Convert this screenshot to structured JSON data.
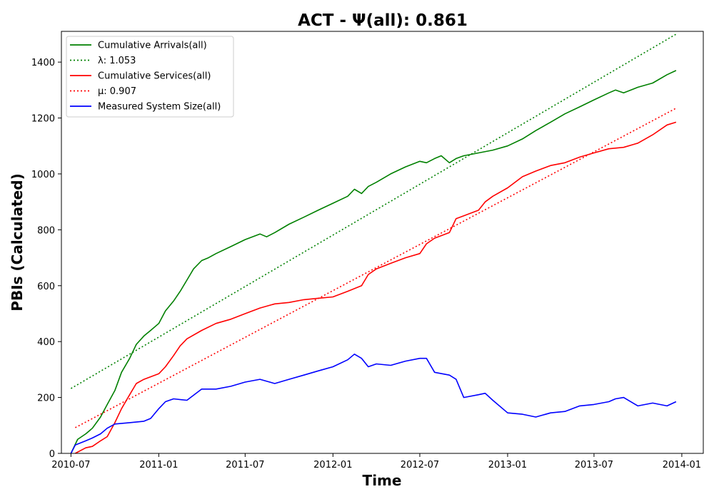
{
  "chart_data": {
    "type": "line",
    "title": "ACT -  Ψ(all): 0.861",
    "xlabel": "Time",
    "ylabel": "PBIs (Calculated)",
    "xlim": [
      "2010-06-11",
      "2014-02-15"
    ],
    "ylim": [
      0,
      1510
    ],
    "x_ticks": [
      "2010-07",
      "2011-01",
      "2011-07",
      "2012-01",
      "2012-07",
      "2013-01",
      "2013-07",
      "2014-01"
    ],
    "y_ticks": [
      0,
      200,
      400,
      600,
      800,
      1000,
      1200,
      1400
    ],
    "grid": false,
    "legend_position": "top-left",
    "series": [
      {
        "name": "Cumulative Arrivals(all)",
        "color": "#008000",
        "style": "solid",
        "x": [
          "2010-07-01",
          "2010-07-15",
          "2010-08-01",
          "2010-08-15",
          "2010-09-01",
          "2010-09-15",
          "2010-10-01",
          "2010-10-15",
          "2010-11-01",
          "2010-11-15",
          "2010-12-01",
          "2010-12-15",
          "2011-01-01",
          "2011-01-15",
          "2011-02-01",
          "2011-02-15",
          "2011-03-01",
          "2011-03-15",
          "2011-04-01",
          "2011-04-15",
          "2011-05-01",
          "2011-06-01",
          "2011-07-01",
          "2011-08-01",
          "2011-08-15",
          "2011-09-01",
          "2011-10-01",
          "2011-11-01",
          "2011-12-01",
          "2012-01-01",
          "2012-02-01",
          "2012-02-15",
          "2012-03-01",
          "2012-03-15",
          "2012-04-01",
          "2012-05-01",
          "2012-06-01",
          "2012-07-01",
          "2012-07-15",
          "2012-08-01",
          "2012-08-15",
          "2012-09-01",
          "2012-09-15",
          "2012-10-01",
          "2012-11-01",
          "2012-12-01",
          "2013-01-01",
          "2013-02-01",
          "2013-03-01",
          "2013-04-01",
          "2013-05-01",
          "2013-06-01",
          "2013-07-01",
          "2013-08-01",
          "2013-08-15",
          "2013-09-01",
          "2013-10-01",
          "2013-11-01",
          "2013-12-01",
          "2013-12-20"
        ],
        "values": [
          0,
          50,
          70,
          90,
          130,
          175,
          225,
          290,
          340,
          390,
          420,
          440,
          465,
          510,
          545,
          580,
          620,
          660,
          690,
          700,
          715,
          740,
          765,
          785,
          775,
          790,
          820,
          845,
          870,
          895,
          920,
          945,
          930,
          955,
          970,
          1000,
          1025,
          1045,
          1040,
          1055,
          1065,
          1040,
          1055,
          1065,
          1075,
          1085,
          1100,
          1125,
          1155,
          1185,
          1215,
          1240,
          1265,
          1290,
          1300,
          1290,
          1310,
          1325,
          1355,
          1370
        ]
      },
      {
        "name": "λ: 1.053",
        "color": "#008000",
        "style": "dotted",
        "x": [
          "2010-07-01",
          "2013-12-20"
        ],
        "values": [
          232,
          1500
        ]
      },
      {
        "name": "Cumulative Services(all)",
        "color": "#ff0000",
        "style": "solid",
        "x": [
          "2010-07-10",
          "2010-08-01",
          "2010-08-15",
          "2010-09-01",
          "2010-09-15",
          "2010-10-01",
          "2010-10-15",
          "2010-11-01",
          "2010-11-15",
          "2010-12-01",
          "2011-01-01",
          "2011-01-15",
          "2011-02-01",
          "2011-02-15",
          "2011-03-01",
          "2011-04-01",
          "2011-05-01",
          "2011-06-01",
          "2011-07-01",
          "2011-08-01",
          "2011-09-01",
          "2011-10-01",
          "2011-11-01",
          "2011-12-01",
          "2012-01-01",
          "2012-02-01",
          "2012-03-01",
          "2012-03-15",
          "2012-04-01",
          "2012-05-01",
          "2012-06-01",
          "2012-07-01",
          "2012-07-15",
          "2012-08-01",
          "2012-09-01",
          "2012-09-15",
          "2012-10-01",
          "2012-11-01",
          "2012-11-15",
          "2012-12-01",
          "2013-01-01",
          "2013-02-01",
          "2013-03-01",
          "2013-04-01",
          "2013-05-01",
          "2013-06-01",
          "2013-07-01",
          "2013-08-01",
          "2013-09-01",
          "2013-10-01",
          "2013-11-01",
          "2013-12-01",
          "2013-12-20"
        ],
        "values": [
          0,
          20,
          25,
          45,
          60,
          110,
          160,
          210,
          250,
          265,
          285,
          310,
          350,
          385,
          410,
          440,
          465,
          480,
          500,
          520,
          535,
          540,
          550,
          555,
          560,
          580,
          600,
          640,
          660,
          680,
          700,
          715,
          750,
          770,
          790,
          840,
          850,
          870,
          900,
          920,
          950,
          990,
          1010,
          1030,
          1040,
          1060,
          1075,
          1090,
          1095,
          1110,
          1140,
          1175,
          1185
        ]
      },
      {
        "name": "μ: 0.907",
        "color": "#ff0000",
        "style": "dotted",
        "x": [
          "2010-07-10",
          "2013-12-20"
        ],
        "values": [
          92,
          1235
        ]
      },
      {
        "name": "Measured System Size(all)",
        "color": "#0000ff",
        "style": "solid",
        "x": [
          "2010-07-01",
          "2010-07-10",
          "2010-08-01",
          "2010-08-15",
          "2010-09-01",
          "2010-09-15",
          "2010-10-01",
          "2010-11-01",
          "2010-12-01",
          "2010-12-15",
          "2011-01-01",
          "2011-01-15",
          "2011-02-01",
          "2011-03-01",
          "2011-04-01",
          "2011-05-01",
          "2011-06-01",
          "2011-07-01",
          "2011-08-01",
          "2011-09-01",
          "2011-10-01",
          "2011-11-01",
          "2011-12-01",
          "2012-01-01",
          "2012-02-01",
          "2012-02-15",
          "2012-03-01",
          "2012-03-15",
          "2012-04-01",
          "2012-05-01",
          "2012-06-01",
          "2012-07-01",
          "2012-07-15",
          "2012-08-01",
          "2012-09-01",
          "2012-09-15",
          "2012-10-01",
          "2012-11-01",
          "2012-11-15",
          "2012-12-01",
          "2013-01-01",
          "2013-02-01",
          "2013-03-01",
          "2013-04-01",
          "2013-05-01",
          "2013-06-01",
          "2013-07-01",
          "2013-08-01",
          "2013-08-15",
          "2013-09-01",
          "2013-10-01",
          "2013-11-01",
          "2013-12-01",
          "2013-12-20"
        ],
        "values": [
          0,
          30,
          45,
          55,
          70,
          90,
          105,
          110,
          115,
          125,
          160,
          185,
          195,
          190,
          230,
          230,
          240,
          255,
          265,
          250,
          265,
          280,
          295,
          310,
          335,
          355,
          340,
          310,
          320,
          315,
          330,
          340,
          340,
          290,
          280,
          265,
          200,
          210,
          215,
          190,
          145,
          140,
          130,
          145,
          150,
          170,
          175,
          185,
          195,
          200,
          170,
          180,
          170,
          185
        ]
      }
    ]
  }
}
